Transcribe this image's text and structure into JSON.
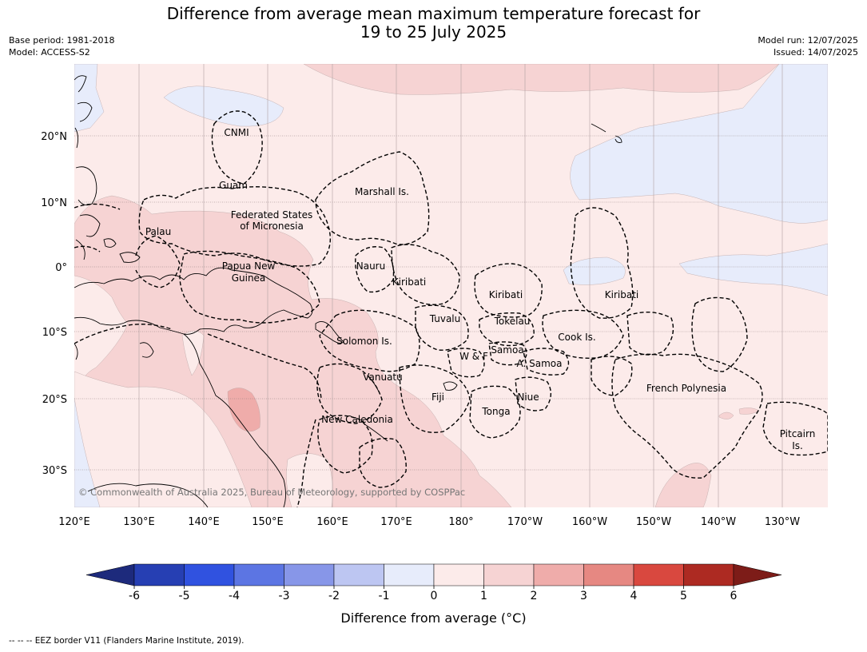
{
  "header": {
    "title_line1": "Difference from average mean maximum temperature forecast for",
    "title_line2": "19 to 25 July 2025",
    "base_period": "Base period: 1981-2018",
    "model": "Model: ACCESS-S2",
    "model_run": "Model run: 12/07/2025",
    "issued": "Issued: 14/07/2025"
  },
  "map": {
    "lon_ticks": [
      "120°E",
      "130°E",
      "140°E",
      "150°E",
      "160°E",
      "170°E",
      "180°",
      "170°W",
      "160°W",
      "150°W",
      "140°W",
      "130°W"
    ],
    "lat_ticks": [
      "20°N",
      "10°N",
      "0°",
      "10°S",
      "20°S",
      "30°S"
    ],
    "copyright": "© Commonwealth of Australia 2025, Bureau of Meteorology, supported by COSPPac",
    "region_labels": [
      {
        "text": "CNMI"
      },
      {
        "text": "Guam"
      },
      {
        "text": "Marshall Is."
      },
      {
        "text": "Federated States"
      },
      {
        "text": "of Micronesia"
      },
      {
        "text": "Palau"
      },
      {
        "text": "Papua New"
      },
      {
        "text": "Guinea"
      },
      {
        "text": "Nauru"
      },
      {
        "text": "Kiribati"
      },
      {
        "text": "Kiribati"
      },
      {
        "text": "Kiribati"
      },
      {
        "text": "Tuvalu"
      },
      {
        "text": "Tokelau"
      },
      {
        "text": "Cook Is."
      },
      {
        "text": "Solomon Is."
      },
      {
        "text": "Samoa"
      },
      {
        "text": "W & F"
      },
      {
        "text": "A. Samoa"
      },
      {
        "text": "Vanuatu"
      },
      {
        "text": "Fiji"
      },
      {
        "text": "Niue"
      },
      {
        "text": "French Polynesia"
      },
      {
        "text": "Tonga"
      },
      {
        "text": "New Caledonia"
      },
      {
        "text": "Pitcairn"
      },
      {
        "text": "Is."
      }
    ]
  },
  "colorbar": {
    "ticks": [
      "-6",
      "-5",
      "-4",
      "-3",
      "-2",
      "-1",
      "0",
      "1",
      "2",
      "3",
      "4",
      "5",
      "6"
    ],
    "colors": [
      "#263fb3",
      "#3052e0",
      "#5c75e3",
      "#8796e8",
      "#bdc6f2",
      "#e7ecfb",
      "#fcebea",
      "#f6d3d3",
      "#efacaa",
      "#e68882",
      "#d9483f",
      "#ad2a22"
    ],
    "under_color": "#1d2a7c",
    "over_color": "#7d1c18",
    "label": "Difference from average (°C)"
  },
  "footnote": "-- -- -- EEZ border V11 (Flanders Marine Institute, 2019)."
}
